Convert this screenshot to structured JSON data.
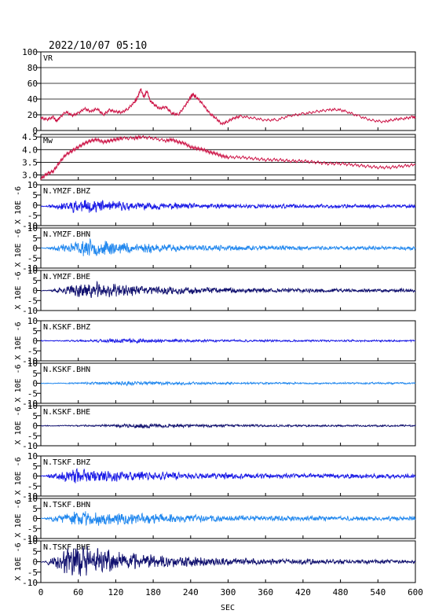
{
  "title": "2022/10/07 05:10",
  "chart_data": {
    "type": "line",
    "x": {
      "label": "SEC",
      "min": 0,
      "max": 600,
      "ticks": [
        0,
        60,
        120,
        180,
        240,
        300,
        360,
        420,
        480,
        540,
        600
      ]
    },
    "panels": [
      {
        "id": "vr",
        "label": "VR",
        "kind": "vr",
        "color": "#cc1144",
        "ylim": [
          0,
          100
        ],
        "ticks": [
          0,
          20,
          40,
          60,
          80,
          100
        ],
        "grid": true,
        "points": [
          [
            0,
            16
          ],
          [
            10,
            14
          ],
          [
            20,
            17
          ],
          [
            25,
            12
          ],
          [
            30,
            16
          ],
          [
            40,
            24
          ],
          [
            50,
            19
          ],
          [
            60,
            22
          ],
          [
            70,
            28
          ],
          [
            80,
            24
          ],
          [
            90,
            28
          ],
          [
            100,
            20
          ],
          [
            110,
            26
          ],
          [
            120,
            24
          ],
          [
            130,
            23
          ],
          [
            140,
            28
          ],
          [
            150,
            36
          ],
          [
            155,
            42
          ],
          [
            160,
            53
          ],
          [
            165,
            42
          ],
          [
            170,
            51
          ],
          [
            175,
            38
          ],
          [
            180,
            34
          ],
          [
            190,
            28
          ],
          [
            200,
            30
          ],
          [
            210,
            22
          ],
          [
            220,
            20
          ],
          [
            230,
            30
          ],
          [
            238,
            40
          ],
          [
            243,
            46
          ],
          [
            250,
            42
          ],
          [
            260,
            33
          ],
          [
            270,
            22
          ],
          [
            280,
            16
          ],
          [
            290,
            8
          ],
          [
            300,
            12
          ],
          [
            310,
            16
          ],
          [
            320,
            18
          ],
          [
            340,
            16
          ],
          [
            360,
            13
          ],
          [
            380,
            14
          ],
          [
            400,
            19
          ],
          [
            420,
            21
          ],
          [
            440,
            24
          ],
          [
            460,
            26
          ],
          [
            475,
            27
          ],
          [
            490,
            24
          ],
          [
            510,
            18
          ],
          [
            530,
            13
          ],
          [
            550,
            11
          ],
          [
            565,
            14
          ],
          [
            580,
            15
          ],
          [
            595,
            17
          ],
          [
            600,
            17
          ]
        ]
      },
      {
        "id": "mw",
        "label": "Mw",
        "kind": "mw",
        "color": "#cc1144",
        "ylim": [
          2.8,
          4.6
        ],
        "ticks": [
          3.0,
          3.5,
          4.0,
          4.5
        ],
        "tick_labels": [
          "3.0",
          "3.5",
          "4.0",
          "4.5"
        ],
        "grid": true,
        "points": [
          [
            0,
            2.85
          ],
          [
            10,
            3.05
          ],
          [
            20,
            3.15
          ],
          [
            30,
            3.5
          ],
          [
            40,
            3.8
          ],
          [
            50,
            3.95
          ],
          [
            60,
            4.1
          ],
          [
            70,
            4.25
          ],
          [
            80,
            4.35
          ],
          [
            90,
            4.4
          ],
          [
            100,
            4.3
          ],
          [
            110,
            4.35
          ],
          [
            120,
            4.4
          ],
          [
            130,
            4.45
          ],
          [
            150,
            4.45
          ],
          [
            160,
            4.5
          ],
          [
            180,
            4.45
          ],
          [
            200,
            4.35
          ],
          [
            210,
            4.4
          ],
          [
            220,
            4.3
          ],
          [
            230,
            4.25
          ],
          [
            240,
            4.1
          ],
          [
            250,
            4.05
          ],
          [
            260,
            4.0
          ],
          [
            270,
            3.9
          ],
          [
            280,
            3.85
          ],
          [
            290,
            3.75
          ],
          [
            300,
            3.7
          ],
          [
            320,
            3.7
          ],
          [
            340,
            3.65
          ],
          [
            360,
            3.6
          ],
          [
            380,
            3.6
          ],
          [
            400,
            3.55
          ],
          [
            420,
            3.55
          ],
          [
            440,
            3.5
          ],
          [
            460,
            3.45
          ],
          [
            480,
            3.45
          ],
          [
            500,
            3.4
          ],
          [
            520,
            3.35
          ],
          [
            540,
            3.3
          ],
          [
            560,
            3.3
          ],
          [
            580,
            3.35
          ],
          [
            600,
            3.4
          ]
        ]
      },
      {
        "id": "ymzf-bhz",
        "label": "N.YMZF.BHZ",
        "kind": "wave",
        "color": "#1a1ae6",
        "seed": 11,
        "onset": 8,
        "peak": 55,
        "tail": 0.15,
        "amp": [
          0.3,
          3.5,
          4.0,
          1.0
        ],
        "bias": -0.5
      },
      {
        "id": "ymzf-bhn",
        "label": "N.YMZF.BHN",
        "kind": "wave",
        "color": "#2288ee",
        "seed": 23,
        "onset": 8,
        "peak": 70,
        "tail": 0.15,
        "amp": [
          0.3,
          4.5,
          5.0,
          1.0
        ],
        "bias": 0.0
      },
      {
        "id": "ymzf-bhe",
        "label": "N.YMZF.BHE",
        "kind": "wave",
        "color": "#10106e",
        "seed": 37,
        "onset": 10,
        "peak": 78,
        "tail": 0.15,
        "amp": [
          0.3,
          4.5,
          5.0,
          1.0
        ],
        "bias": 0.0
      },
      {
        "id": "kskf-bhz",
        "label": "N.KSKF.BHZ",
        "kind": "wave",
        "color": "#1a1ae6",
        "seed": 41,
        "onset": 25,
        "peak": 120,
        "tail": 0.12,
        "amp": [
          0.2,
          1.2,
          1.5,
          0.5
        ],
        "bias": 0.0
      },
      {
        "id": "kskf-bhn",
        "label": "N.KSKF.BHN",
        "kind": "wave",
        "color": "#2288ee",
        "seed": 53,
        "onset": 25,
        "peak": 125,
        "tail": 0.12,
        "amp": [
          0.2,
          1.0,
          1.5,
          0.5
        ],
        "bias": 0.0
      },
      {
        "id": "kskf-bhe",
        "label": "N.KSKF.BHE",
        "kind": "wave",
        "color": "#10106e",
        "seed": 67,
        "onset": 30,
        "peak": 150,
        "tail": 0.12,
        "amp": [
          0.2,
          1.0,
          1.5,
          0.5
        ],
        "bias": 0.0
      },
      {
        "id": "tskf-bhz",
        "label": "N.TSKF.BHZ",
        "kind": "wave",
        "color": "#1a1ae6",
        "seed": 71,
        "onset": 5,
        "peak": 50,
        "tail": 0.2,
        "amp": [
          0.3,
          4.0,
          4.5,
          1.2
        ],
        "bias": 0.0
      },
      {
        "id": "tskf-bhn",
        "label": "N.TSKF.BHN",
        "kind": "wave",
        "color": "#2288ee",
        "seed": 83,
        "onset": 5,
        "peak": 60,
        "tail": 0.2,
        "amp": [
          0.3,
          4.5,
          5.0,
          1.2
        ],
        "bias": 0.0
      },
      {
        "id": "tskf-bhe",
        "label": "N.TSKF.BHE",
        "kind": "wave",
        "color": "#10106e",
        "seed": 97,
        "onset": 5,
        "peak": 50,
        "tail": 0.2,
        "amp": [
          0.3,
          8.0,
          9.0,
          1.0
        ],
        "bias": 0.0
      }
    ],
    "wave_axis": {
      "ylim": [
        -10,
        10
      ],
      "ticks": [
        -10,
        -5,
        0,
        5,
        10
      ],
      "unit_label": "X 10E -6"
    }
  }
}
